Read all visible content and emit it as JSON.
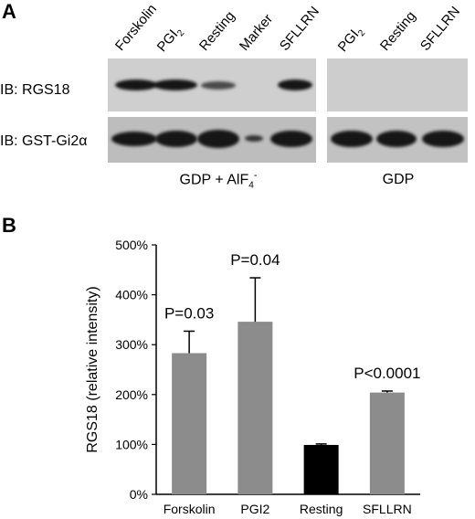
{
  "panel_a": {
    "letter": "A",
    "lanes_left": [
      "Forskolin",
      "PGI",
      "Resting",
      "Marker",
      "SFLLRN"
    ],
    "lanes_right": [
      "PGI",
      "Resting",
      "SFLLRN"
    ],
    "subscript_2": "2",
    "row_labels": [
      "IB: RGS18",
      "IB: GST-Gi2α"
    ],
    "condition_left_main": "GDP + AlF",
    "condition_left_sub": "4",
    "condition_left_sup": "-",
    "condition_right": "GDP"
  },
  "panel_b": {
    "letter": "B"
  },
  "chart_data": {
    "type": "bar",
    "categories": [
      "Forskolin",
      "PGI2",
      "Resting",
      "SFLLRN"
    ],
    "values": [
      283,
      346,
      99,
      204
    ],
    "errors": [
      44,
      88,
      2,
      3
    ],
    "bar_colors": [
      "#8c8c8c",
      "#8c8c8c",
      "#000000",
      "#8c8c8c"
    ],
    "annotations": [
      "P=0.03",
      "P=0.04",
      "",
      "P<0.0001"
    ],
    "ylabel": "RGS18 (relative intensity)",
    "ylim": [
      0,
      500
    ],
    "yticks": [
      "0%",
      "100%",
      "200%",
      "300%",
      "400%",
      "500%"
    ],
    "grid": false
  }
}
